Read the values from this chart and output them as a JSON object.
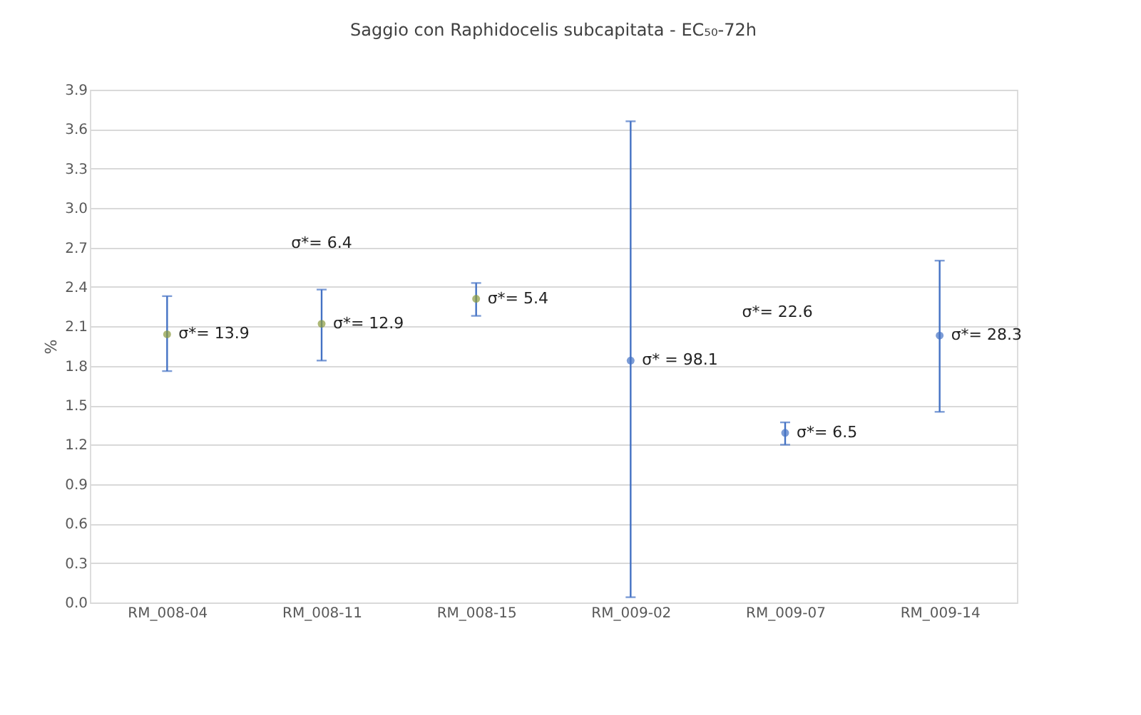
{
  "chart_data": {
    "type": "scatter",
    "title": "Saggio con Raphidocelis subcapitata - EC₅₀-72h",
    "ylabel": "%",
    "categories": [
      "RM_008-04",
      "RM_008-11",
      "RM_008-15",
      "RM_009-02",
      "RM_009-07",
      "RM_009-14"
    ],
    "values": [
      2.04,
      2.12,
      2.31,
      1.84,
      1.29,
      2.03
    ],
    "colors": [
      "#8a9a3c",
      "#8a9a3c",
      "#8a9a3c",
      "#4472c4",
      "#4472c4",
      "#4472c4"
    ],
    "errors": [
      [
        1.76,
        2.33
      ],
      [
        1.84,
        2.38
      ],
      [
        2.18,
        2.43
      ],
      [
        0.04,
        3.66
      ],
      [
        1.2,
        1.37
      ],
      [
        1.45,
        2.6
      ]
    ],
    "ylim": [
      0,
      3.9
    ],
    "yticks": [
      {
        "value": 0,
        "label": "0.0"
      },
      0.3,
      0.6,
      0.9,
      1.2,
      1.5,
      1.8,
      2.1,
      2.4,
      2.7,
      {
        "value": 3,
        "label": "3.0"
      },
      3.3,
      3.6,
      3.9
    ],
    "grid": "y",
    "marker": "circle",
    "annotations": [
      {
        "text": "σ*= 13.9",
        "x": "RM_008-04",
        "y": 2.04
      },
      {
        "text": "σ*= 12.9",
        "x": "RM_008-11",
        "y": 2.12
      },
      {
        "text": "σ*= 5.4",
        "x": "RM_008-15",
        "y": 2.31
      },
      {
        "text": "σ* = 98.1",
        "x": "RM_009-02",
        "y": 1.84
      },
      {
        "text": "σ*= 6.5",
        "x": "RM_009-07",
        "y": 1.29
      },
      {
        "text": "σ*= 28.3",
        "x": "RM_009-14",
        "y": 2.03
      },
      "σ*= 6.4",
      "σ*= 22.6"
    ]
  }
}
